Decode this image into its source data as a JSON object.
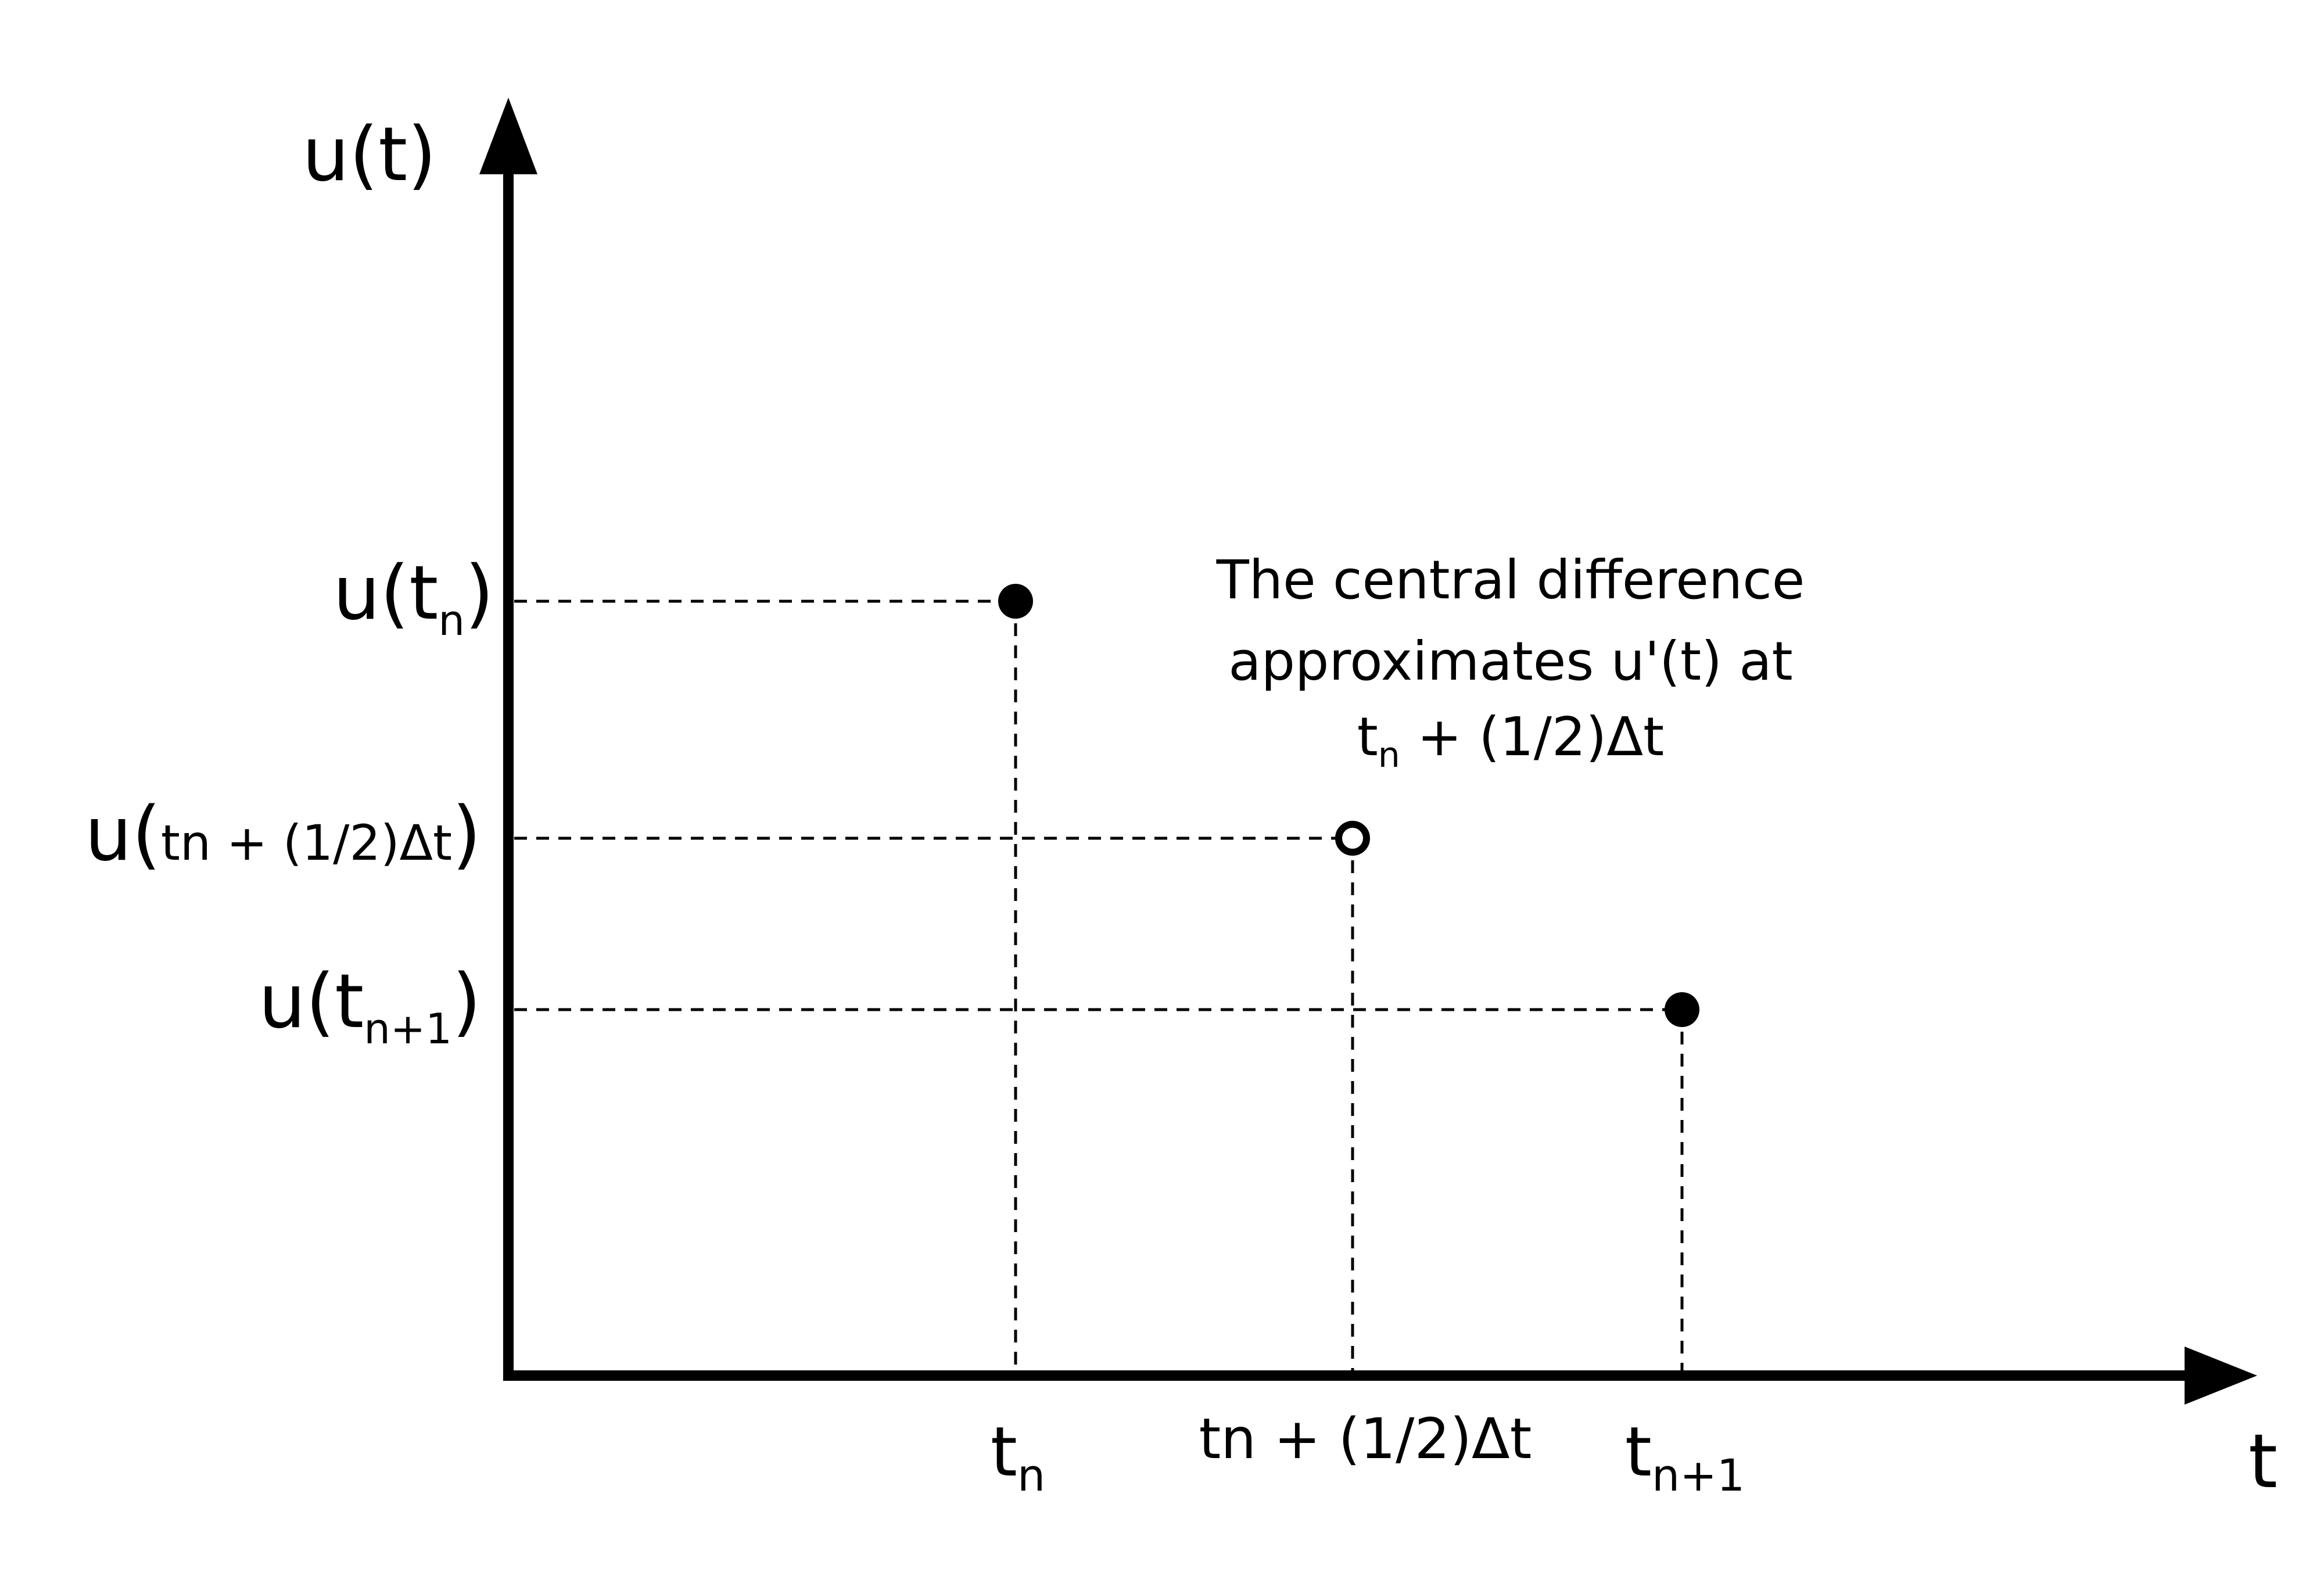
{
  "axes": {
    "y_title": "u(t)",
    "x_title": "t"
  },
  "y_labels": {
    "tn": {
      "main": "u(t",
      "sub": "n",
      "close": ")"
    },
    "mid": {
      "open": "u(",
      "inner": "tn + (1/2)Δt",
      "close": ")"
    },
    "tn1": {
      "main": "u(t",
      "sub": "n+1",
      "close": ")"
    }
  },
  "x_labels": {
    "tn": {
      "main": "t",
      "sub": "n"
    },
    "mid": {
      "text": "tn + (1/2)Δt"
    },
    "tn1": {
      "main": "t",
      "sub": "n+1"
    }
  },
  "annotation": {
    "line1": "The central difference",
    "line2": "approximates u'(t) at",
    "line3_main": "t",
    "line3_sub": "n",
    "line3_rest": " + (1/2)Δt"
  },
  "points": [
    {
      "name": "u(tn)",
      "style": "filled"
    },
    {
      "name": "u(tn + (1/2)Δt)",
      "style": "hollow"
    },
    {
      "name": "u(tn+1)",
      "style": "filled"
    }
  ],
  "colors": {
    "ink": "#000000",
    "background": "#ffffff"
  }
}
